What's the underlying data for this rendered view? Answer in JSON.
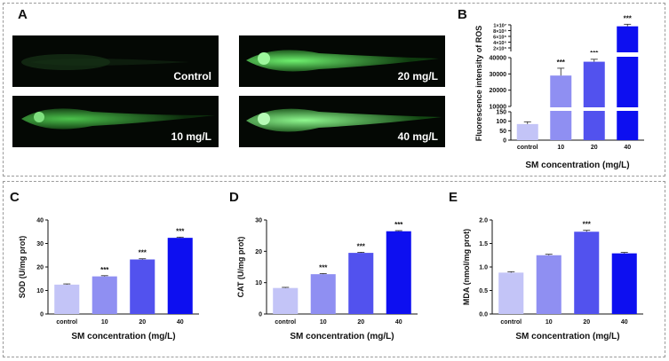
{
  "panel_labels": {
    "A": "A",
    "B": "B",
    "C": "C",
    "D": "D",
    "E": "E"
  },
  "images": [
    {
      "label": "Control",
      "glow": 0.05
    },
    {
      "label": "20 mg/L",
      "glow": 0.85
    },
    {
      "label": "10 mg/L",
      "glow": 0.55
    },
    {
      "label": "40 mg/L",
      "glow": 1.0
    }
  ],
  "colors": {
    "control": "#c3c4f7",
    "c10": "#8f8ff2",
    "c20": "#5252ee",
    "c40": "#0d0ff0",
    "frame": "#9a9a9a"
  },
  "chart_data": [
    {
      "id": "B",
      "type": "bar",
      "title": "",
      "ylabel": "Fluorescence intensity of ROS",
      "xlabel": "SM concentration (mg/L)",
      "categories": [
        "control",
        "10",
        "20",
        "40"
      ],
      "values": [
        85,
        29000,
        37500,
        9500000
      ],
      "errors": [
        12,
        4500,
        1500,
        700000
      ],
      "significance": [
        "",
        "***",
        "***",
        "***"
      ],
      "broken_axis_segments": [
        {
          "range": [
            0,
            150
          ],
          "ticks": [
            "0",
            "50",
            "100",
            "150"
          ]
        },
        {
          "range": [
            10000,
            40000
          ],
          "ticks": [
            "10000",
            "20000",
            "30000",
            "40000"
          ]
        },
        {
          "range": [
            1000000,
            10000000
          ],
          "ticks": [
            "1×10⁷",
            "8×10⁶",
            "6×10⁶",
            "4×10⁶",
            "2×10⁶"
          ]
        }
      ]
    },
    {
      "id": "C",
      "type": "bar",
      "ylabel": "SOD (U/mg prot)",
      "xlabel": "SM concentration (mg/L)",
      "categories": [
        "control",
        "10",
        "20",
        "40"
      ],
      "values": [
        12.5,
        16.0,
        23.2,
        32.4
      ],
      "errors": [
        0.3,
        0.3,
        0.3,
        0.3
      ],
      "significance": [
        "",
        "***",
        "***",
        "***"
      ],
      "ylim": [
        0,
        40
      ],
      "yticks": [
        0,
        10,
        20,
        30,
        40
      ]
    },
    {
      "id": "D",
      "type": "bar",
      "ylabel": "CAT (U/mg prot)",
      "xlabel": "SM concentration (mg/L)",
      "categories": [
        "control",
        "10",
        "20",
        "40"
      ],
      "values": [
        8.3,
        12.7,
        19.5,
        26.4
      ],
      "errors": [
        0.2,
        0.2,
        0.2,
        0.2
      ],
      "significance": [
        "",
        "***",
        "***",
        "***"
      ],
      "ylim": [
        0,
        30
      ],
      "yticks": [
        0,
        10,
        20,
        30
      ]
    },
    {
      "id": "E",
      "type": "bar",
      "ylabel": "MDA (nmol/mg prot)",
      "xlabel": "SM concentration (mg/L)",
      "categories": [
        "control",
        "10",
        "20",
        "40"
      ],
      "values": [
        0.88,
        1.25,
        1.75,
        1.29
      ],
      "errors": [
        0.02,
        0.02,
        0.03,
        0.02
      ],
      "significance": [
        "",
        "",
        "***",
        ""
      ],
      "ylim": [
        0,
        2.0
      ],
      "yticks": [
        "0.0",
        "0.5",
        "1.0",
        "1.5",
        "2.0"
      ]
    }
  ]
}
